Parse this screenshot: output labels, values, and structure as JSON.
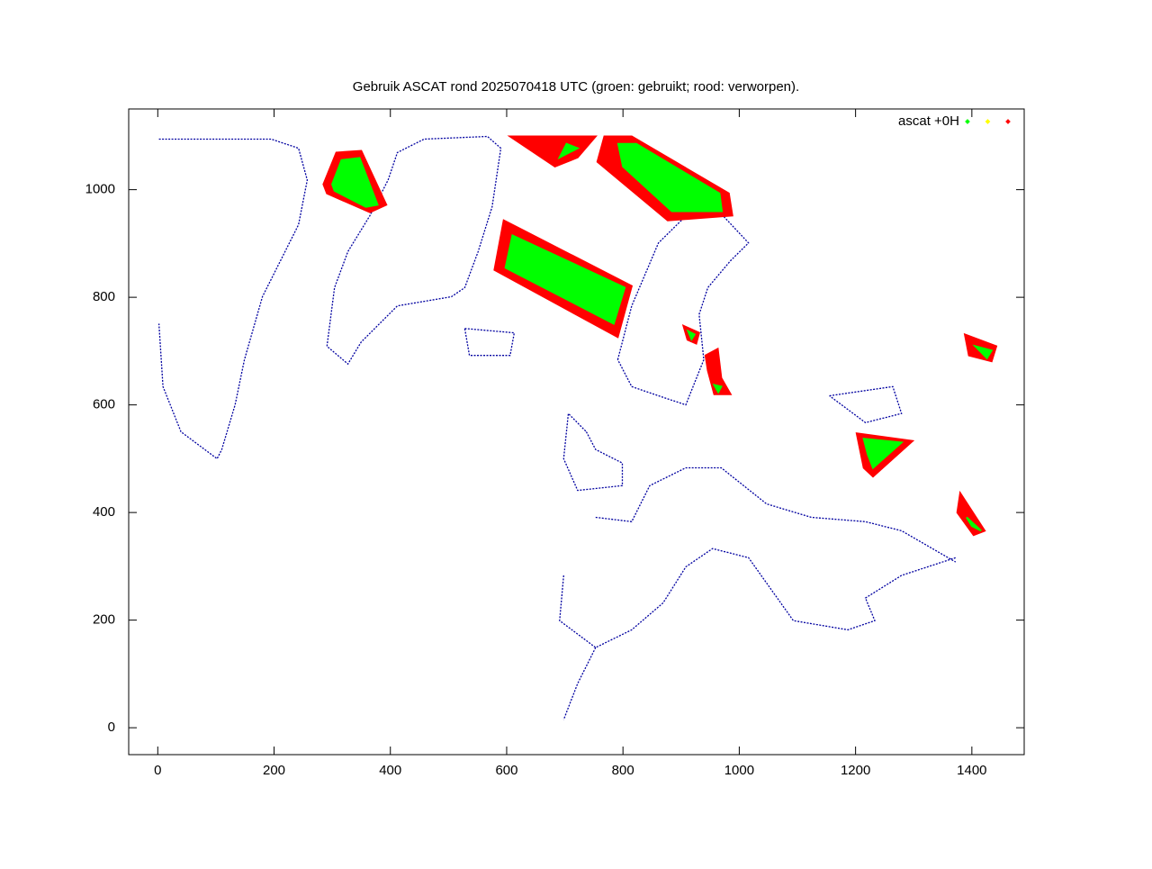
{
  "chart_data": {
    "type": "scatter",
    "title": "Gebruik ASCAT rond 2025070418 UTC (groen: gebruikt; rood: verworpen).",
    "xlim": [
      -50,
      1490
    ],
    "ylim": [
      -50,
      1150
    ],
    "xticks": [
      0,
      200,
      400,
      600,
      800,
      1000,
      1200,
      1400
    ],
    "yticks": [
      0,
      200,
      400,
      600,
      800,
      1000
    ],
    "legend": "top-right",
    "coastline": {
      "color": "#0000a0",
      "x": [
        2,
        195,
        242,
        257,
        242,
        180,
        149,
        133,
        110,
        102,
        40,
        9,
        2,
        null,
        291,
        304,
        327,
        365,
        396,
        412,
        458,
        567,
        590,
        575,
        551,
        528,
        505,
        412,
        350,
        327,
        291,
        null,
        528,
        613,
        606,
        536,
        528,
        null,
        791,
        815,
        861,
        908,
        969,
        1016,
        985,
        946,
        931,
        939,
        908,
        861,
        815,
        791,
        null,
        737,
        753,
        799,
        799,
        722,
        698,
        706,
        737,
        null,
        753,
        815,
        846,
        908,
        969,
        1047,
        1124,
        1217,
        1279,
        1372,
        null,
        698,
        691,
        753,
        815,
        869,
        908,
        954,
        1016,
        1093,
        1187,
        1233,
        1217,
        1279,
        1372,
        null,
        753,
        722,
        698,
        null,
        1155,
        1264,
        1279,
        1217,
        1155
      ],
      "values": [
        1094,
        1094,
        1077,
        1018,
        935,
        801,
        684,
        600,
        517,
        500,
        550,
        634,
        751,
        null,
        709,
        818,
        885,
        952,
        1018,
        1069,
        1094,
        1099,
        1077,
        968,
        885,
        818,
        801,
        784,
        717,
        676,
        709,
        null,
        742,
        734,
        692,
        692,
        742,
        null,
        684,
        784,
        901,
        951,
        955,
        901,
        868,
        818,
        768,
        684,
        600,
        617,
        634,
        684,
        null,
        550,
        517,
        492,
        450,
        441,
        500,
        584,
        550,
        null,
        391,
        383,
        450,
        483,
        483,
        416,
        391,
        383,
        366,
        308,
        null,
        283,
        199,
        149,
        182,
        232,
        299,
        333,
        316,
        199,
        182,
        199,
        241,
        283,
        316,
        null,
        149,
        82,
        15,
        null,
        617,
        634,
        584,
        567,
        617
      ]
    },
    "series": [
      {
        "name": "ascat +0H",
        "color": "#00ff00",
        "regions": [
          {
            "x": [
              300,
              316,
              347,
              378,
              358,
              304
            ],
            "values": [
              1010,
              1055,
              1059,
              972,
              968,
              998
            ]
          },
          {
            "x": [
              610,
              598,
              784,
              803
            ],
            "values": [
              915,
              855,
              751,
              818
            ]
          },
          {
            "x": [
              691,
              722,
              703
            ],
            "values": [
              1060,
              1077,
              1085
            ]
          },
          {
            "x": [
              792,
              800,
              884,
              970,
              966,
              823
            ],
            "values": [
              1085,
              1043,
              960,
              960,
              993,
              1085
            ]
          },
          {
            "x": [
              912,
              923,
              918
            ],
            "values": [
              737,
              731,
              722
            ]
          },
          {
            "x": [
              957,
              969,
              964
            ],
            "values": [
              637,
              634,
              624
            ]
          },
          {
            "x": [
              1214,
              1279,
              1230,
              1221
            ],
            "values": [
              537,
              530,
              483,
              508
            ]
          },
          {
            "x": [
              1406,
              1434,
              1426
            ],
            "values": [
              709,
              701,
              687
            ]
          },
          {
            "x": [
              1391,
              1416,
              1400
            ],
            "values": [
              391,
              366,
              375
            ]
          }
        ]
      },
      {
        "color": "#ffff00",
        "regions": []
      },
      {
        "color": "#ff0000",
        "regions": [
          {
            "x": [
              285,
              307,
              350,
              393,
              365,
              291
            ],
            "values": [
              1010,
              1069,
              1072,
              972,
              958,
              993
            ]
          },
          {
            "x": [
              595,
              579,
              791,
              815
            ],
            "values": [
              943,
              851,
              726,
              821
            ]
          },
          {
            "x": [
              606,
              683,
              722,
              753
            ],
            "values": [
              1099,
              1043,
              1060,
              1099
            ]
          },
          {
            "x": [
              768,
              756,
              877,
              988,
              982,
              815
            ],
            "values": [
              1099,
              1052,
              943,
              952,
              993,
              1099
            ]
          },
          {
            "x": [
              904,
              931,
              926,
              911
            ],
            "values": [
              747,
              734,
              714,
              721
            ]
          },
          {
            "x": [
              942,
              963,
              969,
              985,
              957,
              946
            ],
            "values": [
              692,
              704,
              650,
              620,
              620,
              664
            ]
          },
          {
            "x": [
              1202,
              1298,
              1230,
              1214
            ],
            "values": [
              547,
              533,
              467,
              483
            ]
          },
          {
            "x": [
              1388,
              1442,
              1434,
              1395
            ],
            "values": [
              731,
              709,
              681,
              692
            ]
          },
          {
            "x": [
              1380,
              1422,
              1403,
              1375
            ],
            "values": [
              436,
              366,
              358,
              400
            ]
          }
        ]
      }
    ]
  }
}
